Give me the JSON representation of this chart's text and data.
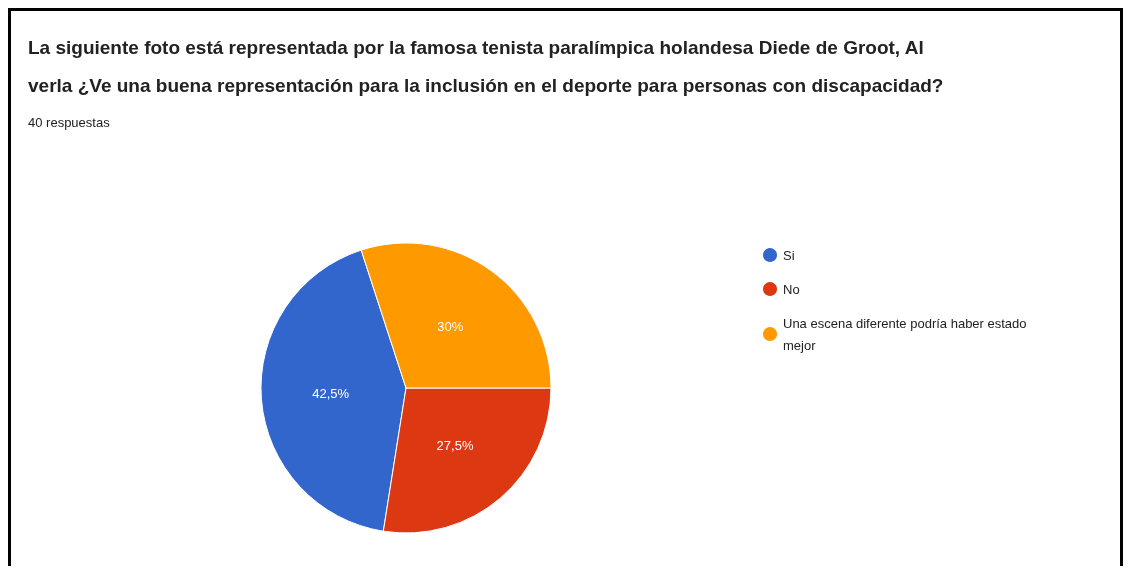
{
  "chart_data": {
    "type": "pie",
    "title": "La siguiente foto está representada por la famosa tenista paralímpica holandesa Diede de Groot, Al verla ¿Ve una buena representación para la inclusión en el deporte para personas con discapacidad?",
    "subtitle": "40 respuestas",
    "categories": [
      "Si",
      "No",
      "Una escena diferente podría haber estado mejor"
    ],
    "values": [
      42.5,
      27.5,
      30
    ],
    "colors": [
      "#3366cc",
      "#dc3912",
      "#ff9900"
    ],
    "value_labels": [
      "42,5%",
      "27,5%",
      "30%"
    ],
    "legend": "top right"
  }
}
